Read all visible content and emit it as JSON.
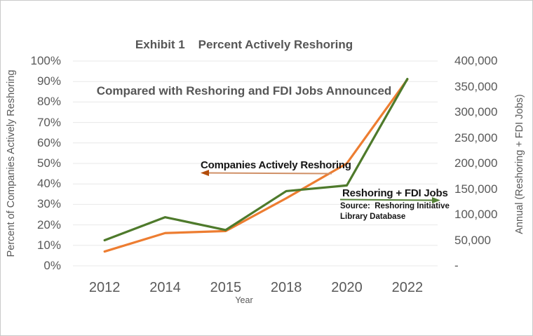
{
  "title": {
    "line1": "Exhibit 1    Percent Actively Reshoring",
    "line2": "Compared with Reshoring and FDI Jobs Announced"
  },
  "left_axis": {
    "title": "Percent of Companies Actively Reshoring",
    "ticks": [
      "100%",
      "90%",
      "80%",
      "70%",
      "60%",
      "50%",
      "40%",
      "30%",
      "20%",
      "10%",
      "0%"
    ]
  },
  "right_axis": {
    "title": "Annual (Reshoring + FDI Jobs)",
    "ticks": [
      "400,000",
      "350,000",
      "300,000",
      "250,000",
      "200,000",
      "150,000",
      "100,000",
      "50,000",
      "-"
    ]
  },
  "x_axis": {
    "title": "Year",
    "categories": [
      "2012",
      "2014",
      "2015",
      "2018",
      "2020",
      "2022"
    ]
  },
  "annotations": {
    "orange_label": "Companies Actively Reshoring",
    "green_label": "Reshoring + FDI Jobs",
    "source_line1": "Source:  Reshoring Initiative",
    "source_line2": "Library Database"
  },
  "colors": {
    "orange_line": "#ED7D31",
    "green_line": "#4E7A2B",
    "gridline": "#E8E8E8",
    "tick_text": "#595959",
    "title_text": "#565656",
    "orange_arrow_shaft": "#D09067",
    "orange_arrow_head": "#B34D0B",
    "green_arrow": "#548235"
  },
  "chart_data": {
    "type": "line",
    "title": "Exhibit 1 Percent Actively Reshoring Compared with Reshoring and FDI Jobs Announced",
    "categories": [
      "2012",
      "2014",
      "2015",
      "2018",
      "2020",
      "2022"
    ],
    "series": [
      {
        "name": "Companies Actively Reshoring",
        "axis": "left",
        "unit": "%",
        "color": "#ED7D31",
        "values": [
          7,
          16,
          17,
          33,
          50,
          91
        ]
      },
      {
        "name": "Reshoring + FDI Jobs",
        "axis": "right",
        "unit": "jobs",
        "color": "#4E7A2B",
        "values": [
          50000,
          95000,
          70000,
          146000,
          157000,
          365000
        ]
      }
    ],
    "xlabel": "Year",
    "left_ylabel": "Percent of Companies Actively Reshoring",
    "right_ylabel": "Annual (Reshoring + FDI Jobs)",
    "left_ylim": [
      0,
      100
    ],
    "left_tick_step": 10,
    "right_ylim": [
      0,
      400000
    ],
    "right_tick_step": 50000,
    "grid": true,
    "legend_position": "inline-annotations",
    "source_note": "Source:  Reshoring Initiative Library Database"
  }
}
